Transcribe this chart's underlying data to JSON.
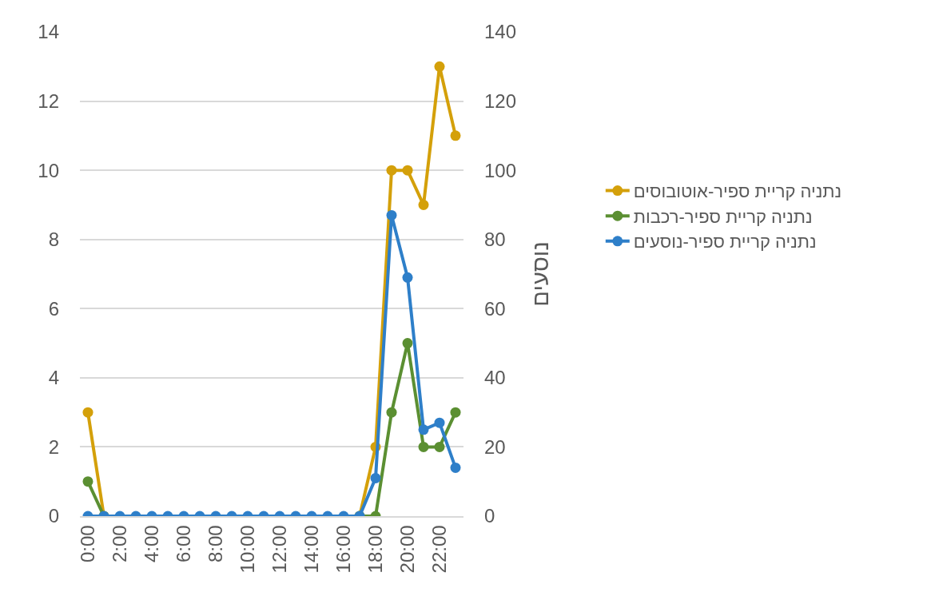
{
  "chart_data": {
    "type": "line",
    "y2label": "נוסעים",
    "categories": [
      "0:00",
      null,
      "2:00",
      null,
      "4:00",
      null,
      "6:00",
      null,
      "8:00",
      null,
      "10:00",
      null,
      "12:00",
      null,
      "14:00",
      null,
      "16:00",
      null,
      "18:00",
      null,
      "20:00",
      null,
      "22:00",
      null
    ],
    "series": [
      {
        "name": "נתניה קריית ספיר-אוטובוסים",
        "color": "#d4a00a",
        "values": [
          3,
          0,
          null,
          null,
          null,
          null,
          null,
          null,
          null,
          null,
          null,
          null,
          null,
          null,
          null,
          null,
          null,
          0,
          2,
          10,
          10,
          9,
          13,
          11
        ]
      },
      {
        "name": "נתניה קריית ספיר-רכבות",
        "color": "#5b8f32",
        "values": [
          1,
          0,
          null,
          null,
          null,
          null,
          null,
          null,
          null,
          null,
          null,
          null,
          null,
          null,
          null,
          null,
          null,
          0,
          0,
          3,
          5,
          2,
          2,
          3
        ]
      },
      {
        "name": "נתניה קריית ספיר-נוסעים",
        "color": "#2e7fc9",
        "axis": "y2",
        "values": [
          0,
          0,
          0,
          0,
          0,
          0,
          0,
          0,
          0,
          0,
          0,
          0,
          0,
          0,
          0,
          0,
          0,
          0,
          11,
          87,
          69,
          25,
          27,
          14
        ]
      }
    ],
    "ylim": [
      0,
      14
    ],
    "yticks": [
      0,
      2,
      4,
      6,
      8,
      10,
      12,
      14
    ],
    "y2lim": [
      0,
      140
    ],
    "y2ticks": [
      0,
      20,
      40,
      60,
      80,
      100,
      120,
      140
    ],
    "grid": "y",
    "legend": "right",
    "marker": "circle",
    "line_style": "solid"
  }
}
